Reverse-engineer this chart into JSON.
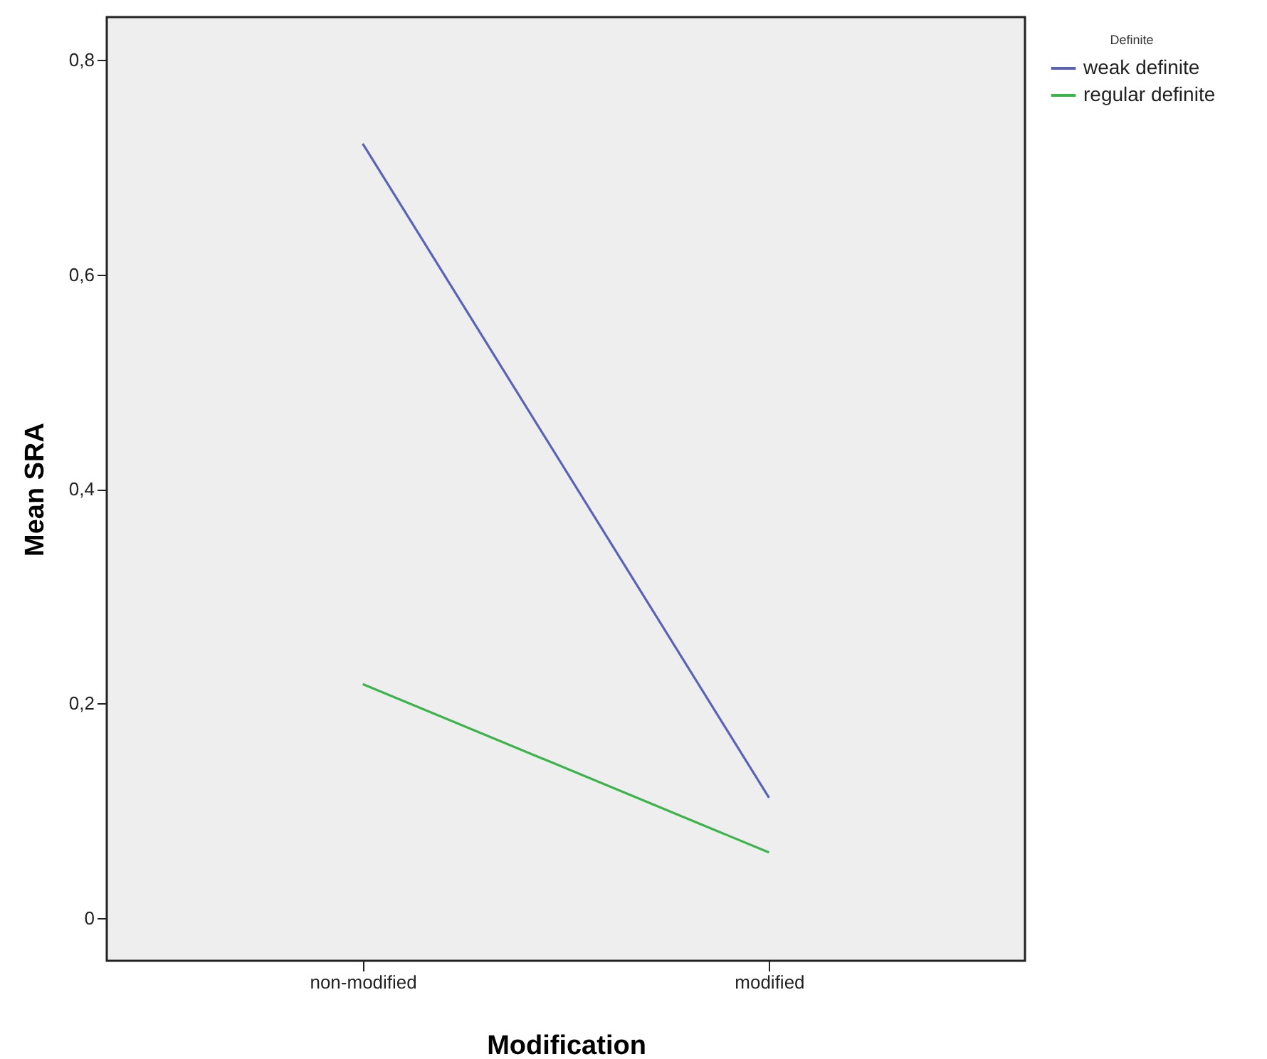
{
  "chart_data": {
    "type": "line",
    "xlabel": "Modification",
    "ylabel": "Mean SRA",
    "legend_title": "Definite",
    "legend": "top right",
    "grid": false,
    "marker": "none",
    "line_style": "solid",
    "categories": [
      "non-modified",
      "modified"
    ],
    "series": [
      {
        "name": "weak definite",
        "color": "#5a62b4",
        "values": [
          0.722,
          0.112
        ]
      },
      {
        "name": "regular definite",
        "color": "#3cb44b",
        "values": [
          0.218,
          0.061
        ]
      }
    ],
    "ylim": [
      -0.04,
      0.84
    ],
    "yticks": [
      {
        "value": 0,
        "label": "0"
      },
      {
        "value": 0.2,
        "label": "0,2"
      },
      {
        "value": 0.4,
        "label": "0,4"
      },
      {
        "value": 0.6,
        "label": "0,6"
      },
      {
        "value": 0.8,
        "label": "0,8"
      }
    ]
  }
}
